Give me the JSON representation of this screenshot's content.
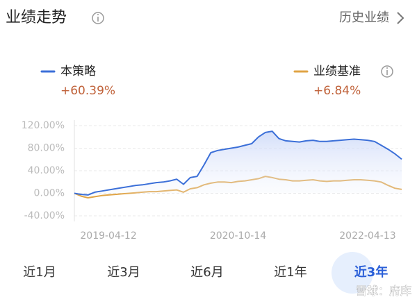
{
  "header": {
    "title": "业绩走势",
    "link": "历史业绩"
  },
  "chart_data": {
    "type": "line",
    "categories": [
      null,
      null,
      null,
      null,
      null,
      "2019-04-12",
      null,
      null,
      null,
      null,
      null,
      null,
      null,
      null,
      null,
      null,
      null,
      null,
      null,
      null,
      null,
      null,
      null,
      null,
      "2020-10-14",
      null,
      null,
      null,
      null,
      null,
      null,
      null,
      null,
      null,
      null,
      null,
      null,
      null,
      null,
      null,
      null,
      null,
      null,
      "2022-04-13",
      null,
      null,
      null,
      null,
      null
    ],
    "series": [
      {
        "name": "本策略",
        "change": "+60.39%",
        "color": "#3b6fd8",
        "values": [
          0,
          -2,
          -3,
          2,
          4,
          6,
          8,
          10,
          12,
          14,
          15,
          17,
          19,
          20,
          22,
          25,
          16,
          28,
          30,
          50,
          72,
          76,
          78,
          80,
          82,
          85,
          88,
          100,
          108,
          110,
          97,
          93,
          92,
          91,
          93,
          94,
          92,
          92,
          93,
          94,
          95,
          96,
          95,
          94,
          92,
          85,
          78,
          70,
          60.39
        ]
      },
      {
        "name": "业绩基准",
        "change": "+6.84%",
        "color": "#e0a445",
        "values": [
          0,
          -5,
          -8,
          -6,
          -4,
          -3,
          -2,
          -1,
          0,
          1,
          2,
          3,
          3,
          4,
          5,
          6,
          2,
          8,
          10,
          15,
          18,
          20,
          20,
          19,
          21,
          22,
          24,
          26,
          30,
          28,
          25,
          24,
          22,
          22,
          23,
          24,
          22,
          21,
          22,
          22,
          23,
          24,
          24,
          23,
          22,
          20,
          14,
          9,
          6.84
        ]
      }
    ],
    "ylim": [
      -40,
      120
    ],
    "yticks": [
      {
        "value": -40,
        "label": "-40.00%"
      },
      {
        "value": 0,
        "label": "0.00%"
      },
      {
        "value": 40,
        "label": "40.00%"
      },
      {
        "value": 80,
        "label": "80.00%"
      },
      {
        "value": 120,
        "label": "120.00%"
      }
    ],
    "grid": true
  },
  "tabs": [
    "近1月",
    "近3月",
    "近6月",
    "近1年",
    "近3年"
  ],
  "active_tab": 4,
  "watermark": "雪球：府库"
}
